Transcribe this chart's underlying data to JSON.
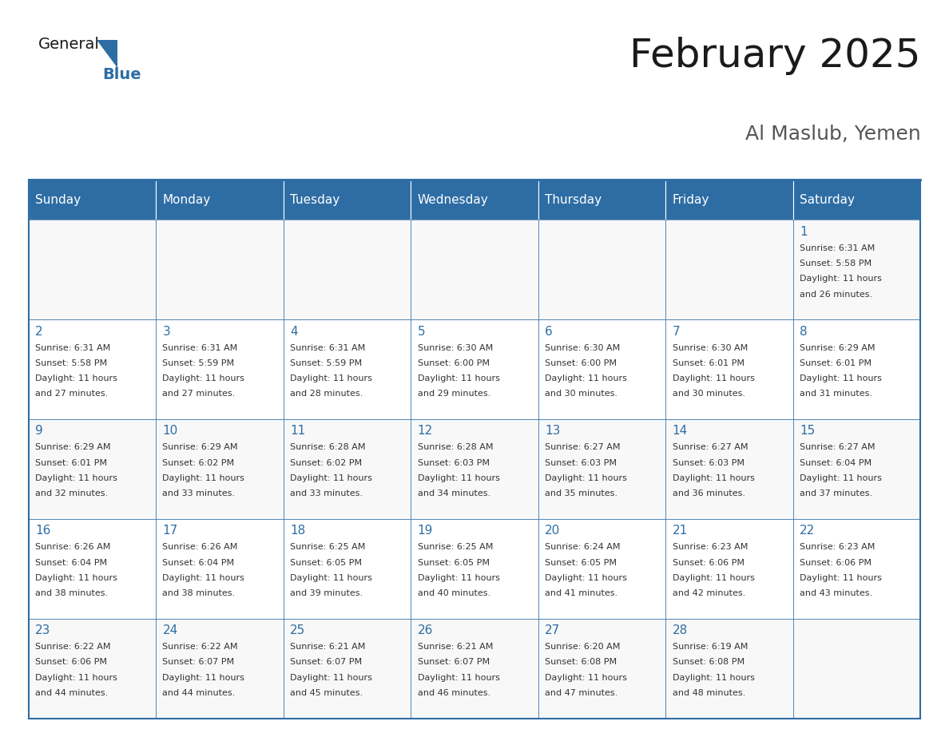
{
  "title": "February 2025",
  "subtitle": "Al Maslub, Yemen",
  "header_bg": "#2E6DA4",
  "header_text_color": "#FFFFFF",
  "border_color": "#2E6DA4",
  "day_headers": [
    "Sunday",
    "Monday",
    "Tuesday",
    "Wednesday",
    "Thursday",
    "Friday",
    "Saturday"
  ],
  "title_color": "#1a1a1a",
  "subtitle_color": "#555555",
  "day_number_color": "#2E6DA4",
  "cell_text_color": "#333333",
  "logo_general_color": "#1a1a1a",
  "logo_blue_color": "#2E6DA4",
  "row_bg_even": "#F8F8F8",
  "row_bg_odd": "#FFFFFF",
  "calendar_data": [
    [
      null,
      null,
      null,
      null,
      null,
      null,
      {
        "day": 1,
        "sunrise": "6:31 AM",
        "sunset": "5:58 PM",
        "daylight": "11 hours and 26 minutes."
      }
    ],
    [
      {
        "day": 2,
        "sunrise": "6:31 AM",
        "sunset": "5:58 PM",
        "daylight": "11 hours and 27 minutes."
      },
      {
        "day": 3,
        "sunrise": "6:31 AM",
        "sunset": "5:59 PM",
        "daylight": "11 hours and 27 minutes."
      },
      {
        "day": 4,
        "sunrise": "6:31 AM",
        "sunset": "5:59 PM",
        "daylight": "11 hours and 28 minutes."
      },
      {
        "day": 5,
        "sunrise": "6:30 AM",
        "sunset": "6:00 PM",
        "daylight": "11 hours and 29 minutes."
      },
      {
        "day": 6,
        "sunrise": "6:30 AM",
        "sunset": "6:00 PM",
        "daylight": "11 hours and 30 minutes."
      },
      {
        "day": 7,
        "sunrise": "6:30 AM",
        "sunset": "6:01 PM",
        "daylight": "11 hours and 30 minutes."
      },
      {
        "day": 8,
        "sunrise": "6:29 AM",
        "sunset": "6:01 PM",
        "daylight": "11 hours and 31 minutes."
      }
    ],
    [
      {
        "day": 9,
        "sunrise": "6:29 AM",
        "sunset": "6:01 PM",
        "daylight": "11 hours and 32 minutes."
      },
      {
        "day": 10,
        "sunrise": "6:29 AM",
        "sunset": "6:02 PM",
        "daylight": "11 hours and 33 minutes."
      },
      {
        "day": 11,
        "sunrise": "6:28 AM",
        "sunset": "6:02 PM",
        "daylight": "11 hours and 33 minutes."
      },
      {
        "day": 12,
        "sunrise": "6:28 AM",
        "sunset": "6:03 PM",
        "daylight": "11 hours and 34 minutes."
      },
      {
        "day": 13,
        "sunrise": "6:27 AM",
        "sunset": "6:03 PM",
        "daylight": "11 hours and 35 minutes."
      },
      {
        "day": 14,
        "sunrise": "6:27 AM",
        "sunset": "6:03 PM",
        "daylight": "11 hours and 36 minutes."
      },
      {
        "day": 15,
        "sunrise": "6:27 AM",
        "sunset": "6:04 PM",
        "daylight": "11 hours and 37 minutes."
      }
    ],
    [
      {
        "day": 16,
        "sunrise": "6:26 AM",
        "sunset": "6:04 PM",
        "daylight": "11 hours and 38 minutes."
      },
      {
        "day": 17,
        "sunrise": "6:26 AM",
        "sunset": "6:04 PM",
        "daylight": "11 hours and 38 minutes."
      },
      {
        "day": 18,
        "sunrise": "6:25 AM",
        "sunset": "6:05 PM",
        "daylight": "11 hours and 39 minutes."
      },
      {
        "day": 19,
        "sunrise": "6:25 AM",
        "sunset": "6:05 PM",
        "daylight": "11 hours and 40 minutes."
      },
      {
        "day": 20,
        "sunrise": "6:24 AM",
        "sunset": "6:05 PM",
        "daylight": "11 hours and 41 minutes."
      },
      {
        "day": 21,
        "sunrise": "6:23 AM",
        "sunset": "6:06 PM",
        "daylight": "11 hours and 42 minutes."
      },
      {
        "day": 22,
        "sunrise": "6:23 AM",
        "sunset": "6:06 PM",
        "daylight": "11 hours and 43 minutes."
      }
    ],
    [
      {
        "day": 23,
        "sunrise": "6:22 AM",
        "sunset": "6:06 PM",
        "daylight": "11 hours and 44 minutes."
      },
      {
        "day": 24,
        "sunrise": "6:22 AM",
        "sunset": "6:07 PM",
        "daylight": "11 hours and 44 minutes."
      },
      {
        "day": 25,
        "sunrise": "6:21 AM",
        "sunset": "6:07 PM",
        "daylight": "11 hours and 45 minutes."
      },
      {
        "day": 26,
        "sunrise": "6:21 AM",
        "sunset": "6:07 PM",
        "daylight": "11 hours and 46 minutes."
      },
      {
        "day": 27,
        "sunrise": "6:20 AM",
        "sunset": "6:08 PM",
        "daylight": "11 hours and 47 minutes."
      },
      {
        "day": 28,
        "sunrise": "6:19 AM",
        "sunset": "6:08 PM",
        "daylight": "11 hours and 48 minutes."
      },
      null
    ]
  ]
}
